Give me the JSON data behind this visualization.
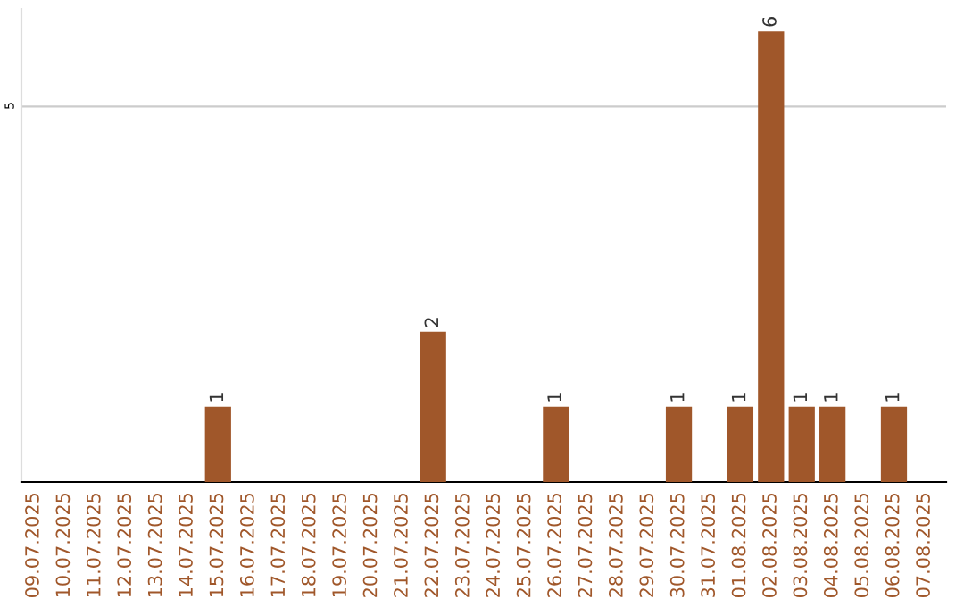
{
  "chart_data": {
    "type": "bar",
    "categories": [
      "09.07.2025",
      "10.07.2025",
      "11.07.2025",
      "12.07.2025",
      "13.07.2025",
      "14.07.2025",
      "15.07.2025",
      "16.07.2025",
      "17.07.2025",
      "18.07.2025",
      "19.07.2025",
      "20.07.2025",
      "21.07.2025",
      "22.07.2025",
      "23.07.2025",
      "24.07.2025",
      "25.07.2025",
      "26.07.2025",
      "27.07.2025",
      "28.07.2025",
      "29.07.2025",
      "30.07.2025",
      "31.07.2025",
      "01.08.2025",
      "02.08.2025",
      "03.08.2025",
      "04.08.2025",
      "05.08.2025",
      "06.08.2025",
      "07.08.2025"
    ],
    "values": [
      0,
      0,
      0,
      0,
      0,
      0,
      1,
      0,
      0,
      0,
      0,
      0,
      0,
      2,
      0,
      0,
      0,
      1,
      0,
      0,
      0,
      1,
      0,
      1,
      6,
      1,
      1,
      0,
      1,
      0
    ],
    "value_labels": [
      null,
      null,
      null,
      null,
      null,
      null,
      "1",
      null,
      null,
      null,
      null,
      null,
      null,
      "2",
      null,
      null,
      null,
      "1",
      null,
      null,
      null,
      "1",
      null,
      "1",
      "6",
      "1",
      "1",
      null,
      "1",
      null
    ],
    "color": "#a0572a",
    "ylim": [
      0,
      6.3
    ],
    "yticks": [
      5
    ],
    "grid": "y"
  }
}
